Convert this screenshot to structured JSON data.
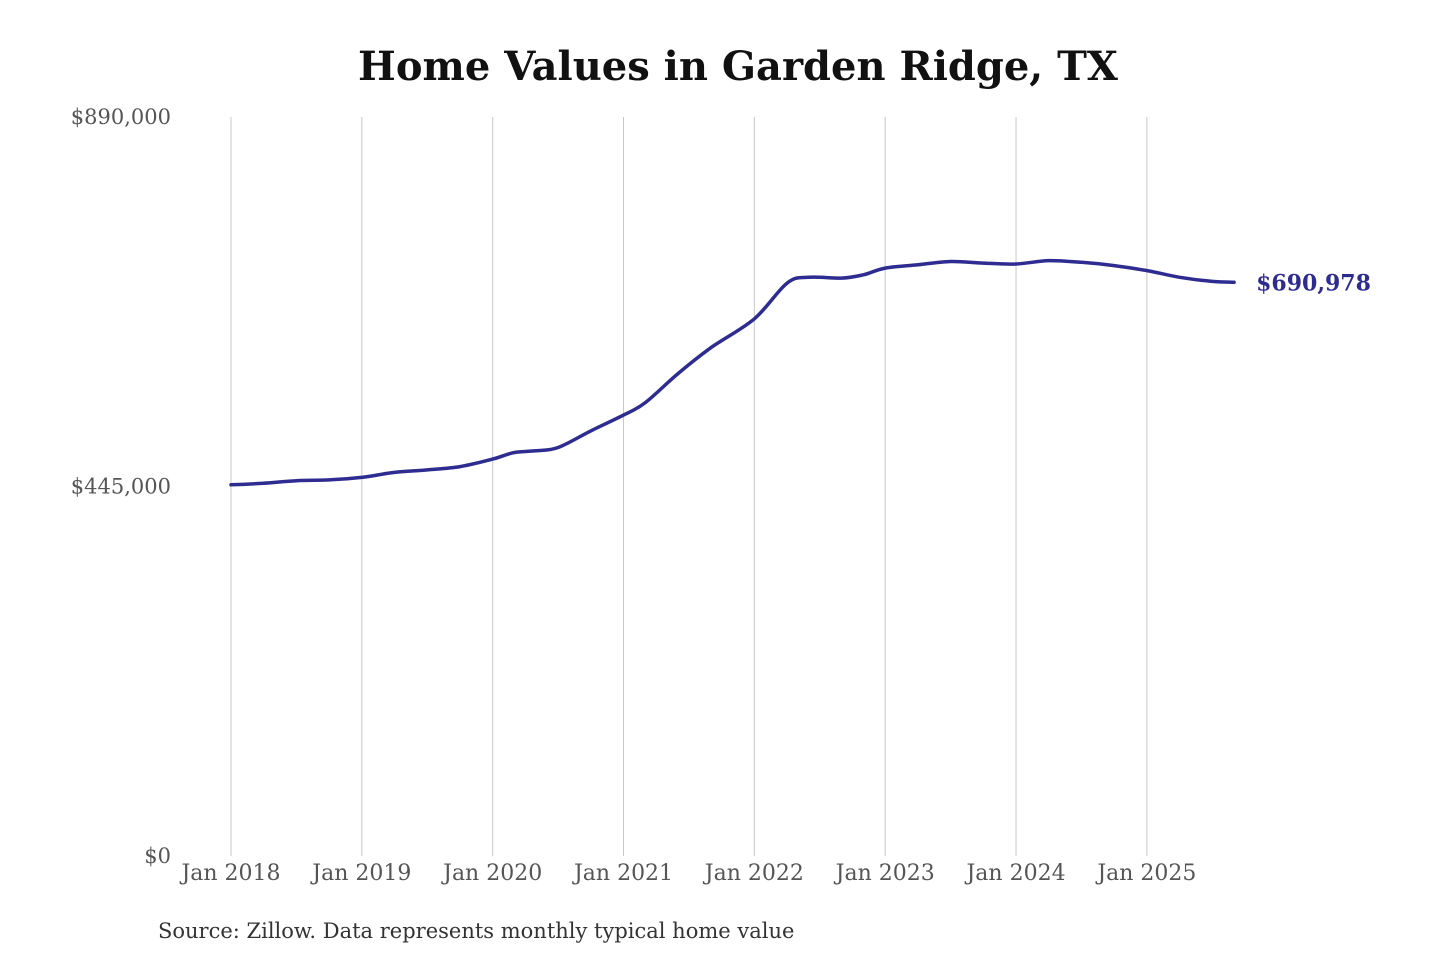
{
  "chart_data": {
    "type": "line",
    "title": "Home Values in Garden Ridge, TX",
    "source": "Source: Zillow. Data represents monthly typical home value",
    "xlabel": "",
    "ylabel": "",
    "ylim": [
      0,
      890000
    ],
    "yticks": [
      {
        "value": 0,
        "label": "$0"
      },
      {
        "value": 445000,
        "label": "$445,000"
      },
      {
        "value": 890000,
        "label": "$890,000"
      }
    ],
    "xlim": [
      "2018-01",
      "2025-10"
    ],
    "xticks": [
      {
        "date": "2018-01",
        "label": "Jan 2018"
      },
      {
        "date": "2019-01",
        "label": "Jan 2019"
      },
      {
        "date": "2020-01",
        "label": "Jan 2020"
      },
      {
        "date": "2021-01",
        "label": "Jan 2021"
      },
      {
        "date": "2022-01",
        "label": "Jan 2022"
      },
      {
        "date": "2023-01",
        "label": "Jan 2023"
      },
      {
        "date": "2024-01",
        "label": "Jan 2024"
      },
      {
        "date": "2025-01",
        "label": "Jan 2025"
      }
    ],
    "grid": "vertical",
    "legend": "none",
    "line_color": "#2e2c91",
    "series": [
      {
        "x": [
          "2018-01",
          "2018-04",
          "2018-07",
          "2018-10",
          "2019-01",
          "2019-04",
          "2019-07",
          "2019-10",
          "2020-01",
          "2020-03",
          "2020-05",
          "2020-07",
          "2020-10",
          "2021-01",
          "2021-03",
          "2021-06",
          "2021-09",
          "2022-01",
          "2022-04",
          "2022-06",
          "2022-09",
          "2022-11",
          "2023-01",
          "2023-04",
          "2023-07",
          "2023-10",
          "2024-01",
          "2024-04",
          "2024-07",
          "2024-10",
          "2025-01",
          "2025-04",
          "2025-07",
          "2025-09"
        ],
        "y": [
          447000,
          449000,
          452000,
          453000,
          456000,
          462000,
          465000,
          469000,
          478000,
          486000,
          488000,
          492000,
          512000,
          531000,
          546000,
          581000,
          612000,
          647000,
          690000,
          697000,
          696000,
          700000,
          708000,
          712000,
          716000,
          714000,
          713000,
          717000,
          715000,
          711000,
          705000,
          697000,
          692000,
          690978
        ]
      }
    ],
    "annotations": [
      {
        "date": "2025-09",
        "value": 690978,
        "label": "$690,978"
      }
    ]
  }
}
